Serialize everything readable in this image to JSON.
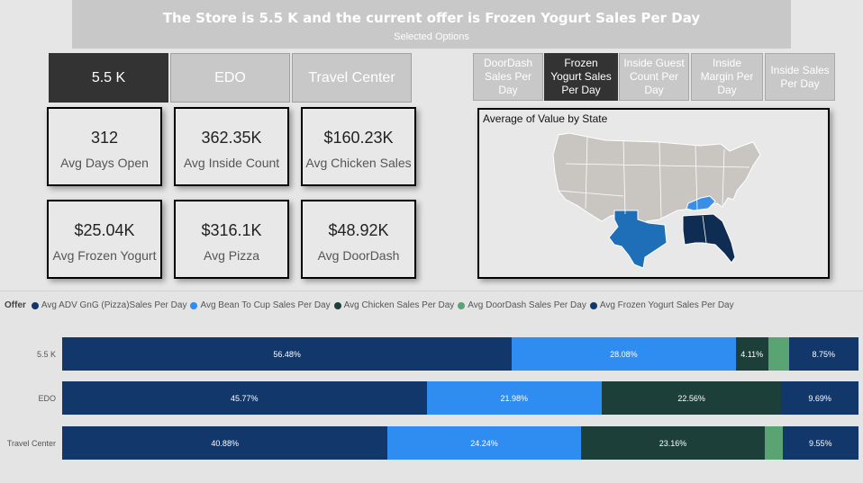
{
  "header": {
    "title": "The Store is 5.5 K and the current offer is Frozen Yogurt Sales Per Day",
    "subtitle": "Selected Options"
  },
  "stores": [
    {
      "label": "5.5 K",
      "active": true
    },
    {
      "label": "EDO",
      "active": false
    },
    {
      "label": "Travel Center",
      "active": false
    }
  ],
  "offers": [
    {
      "label": "DoorDash Sales Per Day",
      "active": false
    },
    {
      "label": "Frozen Yogurt Sales Per Day",
      "active": true
    },
    {
      "label": "Inside Guest Count Per Day",
      "active": false
    },
    {
      "label": "Inside Margin Per Day",
      "active": false
    },
    {
      "label": "Inside Sales Per Day",
      "active": false
    }
  ],
  "cards": [
    {
      "value": "312",
      "label": "Avg Days Open"
    },
    {
      "value": "362.35K",
      "label": "Avg Inside Count"
    },
    {
      "value": "$160.23K",
      "label": "Avg Chicken Sales"
    },
    {
      "value": "$25.04K",
      "label": "Avg Frozen Yogurt"
    },
    {
      "value": "$316.1K",
      "label": "Avg Pizza"
    },
    {
      "value": "$48.92K",
      "label": "Avg DoorDash"
    }
  ],
  "map": {
    "title": "Average of Value by State",
    "colors": {
      "base": "#c9c6c2",
      "texas": "#1f6fb8",
      "kentucky": "#3b8ee8",
      "southeast": "#0f2d52",
      "outline": "#ffffff"
    }
  },
  "chart_data": {
    "type": "bar",
    "orientation": "horizontal",
    "stacked": "100%",
    "legend_title": "Offer",
    "categories": [
      "5.5 K",
      "EDO",
      "Travel Center"
    ],
    "series": [
      {
        "name": "Avg ADV GnG (Pizza)Sales Per Day",
        "color": "#12376b",
        "values": [
          56.48,
          45.77,
          40.88
        ],
        "labels": [
          "56.48%",
          "45.77%",
          "40.88%"
        ]
      },
      {
        "name": "Avg Bean To Cup Sales Per Day",
        "color": "#2f8cf0",
        "values": [
          28.08,
          21.98,
          24.24
        ],
        "labels": [
          "28.08%",
          "21.98%",
          "24.24%"
        ]
      },
      {
        "name": "Avg Chicken Sales Per Day",
        "color": "#1c4039",
        "values": [
          4.11,
          22.56,
          23.16
        ],
        "labels": [
          "4.11%",
          "22.56%",
          "23.16%"
        ]
      },
      {
        "name": "Avg DoorDash Sales Per Day",
        "color": "#5aa474",
        "values": [
          2.58,
          0,
          2.17
        ],
        "labels": [
          "",
          "",
          ""
        ]
      },
      {
        "name": "Avg Frozen Yogurt Sales Per Day",
        "color": "#12376b",
        "values": [
          8.75,
          9.69,
          9.55
        ],
        "labels": [
          "8.75%",
          "9.69%",
          "9.55%"
        ]
      }
    ]
  }
}
